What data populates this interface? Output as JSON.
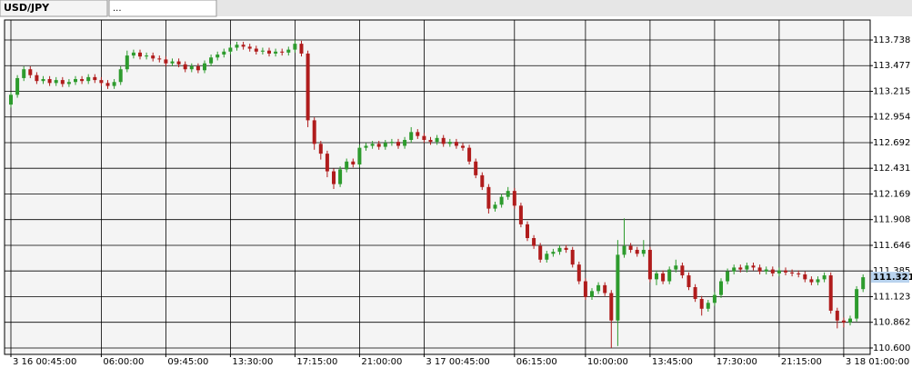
{
  "tabs": [
    "USD/JPY",
    "..."
  ],
  "chart_data": {
    "type": "candlestick",
    "categories": [
      "3 16 00:45:00",
      null,
      null,
      null,
      null,
      null,
      null,
      null,
      null,
      null,
      null,
      null,
      null,
      null,
      "06:00:00",
      null,
      null,
      null,
      null,
      null,
      null,
      null,
      null,
      null,
      "09:45:00",
      null,
      null,
      null,
      null,
      null,
      null,
      null,
      null,
      null,
      "13:30:00",
      null,
      null,
      null,
      null,
      null,
      null,
      null,
      null,
      null,
      "17:15:00",
      null,
      null,
      null,
      null,
      null,
      null,
      null,
      null,
      null,
      "21:00:00",
      null,
      null,
      null,
      null,
      null,
      null,
      null,
      null,
      null,
      "3 17 00:45:00",
      null,
      null,
      null,
      null,
      null,
      null,
      null,
      null,
      null,
      null,
      null,
      null,
      null,
      "06:15:00",
      null,
      null,
      null,
      null,
      null,
      null,
      null,
      null,
      null,
      null,
      "10:00:00",
      null,
      null,
      null,
      null,
      null,
      null,
      null,
      null,
      null,
      "13:45:00",
      null,
      null,
      null,
      null,
      null,
      null,
      null,
      null,
      null,
      "17:30:00",
      null,
      null,
      null,
      null,
      null,
      null,
      null,
      null,
      null,
      "21:15:00",
      null,
      null,
      null,
      null,
      null,
      null,
      null,
      null,
      null,
      "3 18 01:00:00",
      null,
      null,
      null
    ],
    "open": [
      113.08,
      113.18,
      113.35,
      113.44,
      113.38,
      113.32,
      113.34,
      113.3,
      113.33,
      113.29,
      113.31,
      113.34,
      113.32,
      113.36,
      113.33,
      113.3,
      113.27,
      113.31,
      113.44,
      113.58,
      113.61,
      113.57,
      113.58,
      113.55,
      113.54,
      113.5,
      113.52,
      113.49,
      113.44,
      113.47,
      113.43,
      113.5,
      113.56,
      113.59,
      113.62,
      113.66,
      113.69,
      113.67,
      113.65,
      113.62,
      113.63,
      113.6,
      113.62,
      113.61,
      113.64,
      113.7,
      113.6,
      112.92,
      112.68,
      112.58,
      112.4,
      112.27,
      112.42,
      112.5,
      112.47,
      112.64,
      112.66,
      112.68,
      112.65,
      112.69,
      112.7,
      112.66,
      112.72,
      112.8,
      112.76,
      112.72,
      112.7,
      112.74,
      112.68,
      112.7,
      112.66,
      112.64,
      112.5,
      112.36,
      112.24,
      112.02,
      112.06,
      112.14,
      112.2,
      112.05,
      111.86,
      111.72,
      111.64,
      111.5,
      111.56,
      111.58,
      111.62,
      111.6,
      111.45,
      111.28,
      111.12,
      111.18,
      111.24,
      111.16,
      110.88,
      111.55,
      111.64,
      111.6,
      111.56,
      111.6,
      111.3,
      111.36,
      111.28,
      111.4,
      111.44,
      111.34,
      111.22,
      111.1,
      111.0,
      111.06,
      111.14,
      111.28,
      111.38,
      111.42,
      111.4,
      111.44,
      111.42,
      111.38,
      111.4,
      111.36,
      111.39,
      111.37,
      111.36,
      111.35,
      111.3,
      111.27,
      111.3,
      111.34,
      110.98,
      110.88,
      110.86,
      110.9,
      111.2
    ],
    "high": [
      113.21,
      113.38,
      113.47,
      113.47,
      113.41,
      113.37,
      113.37,
      113.36,
      113.36,
      113.34,
      113.37,
      113.37,
      113.39,
      113.39,
      113.36,
      113.33,
      113.34,
      113.47,
      113.63,
      113.64,
      113.64,
      113.61,
      113.61,
      113.58,
      113.57,
      113.55,
      113.55,
      113.52,
      113.5,
      113.5,
      113.53,
      113.59,
      113.62,
      113.65,
      113.69,
      113.72,
      113.72,
      113.7,
      113.68,
      113.66,
      113.66,
      113.65,
      113.65,
      113.67,
      113.74,
      113.73,
      113.63,
      112.95,
      112.71,
      112.61,
      112.43,
      112.45,
      112.53,
      112.53,
      112.67,
      112.69,
      112.71,
      112.71,
      112.72,
      112.73,
      112.73,
      112.75,
      112.85,
      112.83,
      112.79,
      112.75,
      112.77,
      112.77,
      112.73,
      112.73,
      112.69,
      112.67,
      112.53,
      112.39,
      112.27,
      112.09,
      112.17,
      112.24,
      112.23,
      112.08,
      111.89,
      111.75,
      111.67,
      111.59,
      111.61,
      111.65,
      111.65,
      111.63,
      111.48,
      111.31,
      111.21,
      111.27,
      111.27,
      111.19,
      111.7,
      111.92,
      111.67,
      111.63,
      111.7,
      111.63,
      111.39,
      111.39,
      111.43,
      111.5,
      111.47,
      111.37,
      111.25,
      111.13,
      111.09,
      111.17,
      111.31,
      111.41,
      111.45,
      111.45,
      111.47,
      111.47,
      111.45,
      111.43,
      111.43,
      111.42,
      111.42,
      111.4,
      111.39,
      111.38,
      111.33,
      111.33,
      111.37,
      111.37,
      111.01,
      110.91,
      110.93,
      111.23,
      111.35
    ],
    "low": [
      113.05,
      113.15,
      113.32,
      113.35,
      113.29,
      113.29,
      113.27,
      113.27,
      113.26,
      113.26,
      113.28,
      113.29,
      113.29,
      113.3,
      113.27,
      113.24,
      113.24,
      113.28,
      113.41,
      113.55,
      113.54,
      113.54,
      113.52,
      113.51,
      113.47,
      113.47,
      113.46,
      113.41,
      113.41,
      113.4,
      113.4,
      113.47,
      113.53,
      113.56,
      113.59,
      113.63,
      113.64,
      113.62,
      113.59,
      113.59,
      113.57,
      113.57,
      113.58,
      113.58,
      113.61,
      113.57,
      112.85,
      112.62,
      112.52,
      112.34,
      112.22,
      112.24,
      112.39,
      112.44,
      112.44,
      112.61,
      112.63,
      112.62,
      112.62,
      112.66,
      112.63,
      112.63,
      112.69,
      112.73,
      112.69,
      112.67,
      112.67,
      112.65,
      112.65,
      112.63,
      112.61,
      112.47,
      112.33,
      112.21,
      111.97,
      111.99,
      112.03,
      112.11,
      112.02,
      111.83,
      111.69,
      111.61,
      111.47,
      111.47,
      111.53,
      111.55,
      111.57,
      111.42,
      111.25,
      111.09,
      111.09,
      111.15,
      111.13,
      110.6,
      110.62,
      111.52,
      111.57,
      111.53,
      111.53,
      111.27,
      111.24,
      111.25,
      111.25,
      111.37,
      111.31,
      111.19,
      111.07,
      110.93,
      110.97,
      111.03,
      111.11,
      111.25,
      111.35,
      111.37,
      111.37,
      111.39,
      111.35,
      111.35,
      111.33,
      111.33,
      111.34,
      111.33,
      111.32,
      111.27,
      111.24,
      111.24,
      111.27,
      110.95,
      110.8,
      110.81,
      110.83,
      110.87,
      111.17
    ],
    "close": [
      113.18,
      113.35,
      113.44,
      113.38,
      113.32,
      113.34,
      113.3,
      113.33,
      113.29,
      113.31,
      113.34,
      113.32,
      113.36,
      113.33,
      113.3,
      113.27,
      113.31,
      113.44,
      113.58,
      113.61,
      113.57,
      113.58,
      113.55,
      113.54,
      113.5,
      113.52,
      113.49,
      113.44,
      113.47,
      113.43,
      113.5,
      113.56,
      113.59,
      113.62,
      113.66,
      113.69,
      113.67,
      113.65,
      113.62,
      113.63,
      113.6,
      113.62,
      113.61,
      113.64,
      113.7,
      113.6,
      112.92,
      112.68,
      112.58,
      112.4,
      112.27,
      112.42,
      112.5,
      112.47,
      112.64,
      112.66,
      112.68,
      112.65,
      112.69,
      112.7,
      112.66,
      112.72,
      112.8,
      112.76,
      112.72,
      112.7,
      112.74,
      112.68,
      112.7,
      112.66,
      112.64,
      112.5,
      112.36,
      112.24,
      112.02,
      112.06,
      112.14,
      112.2,
      112.05,
      111.86,
      111.72,
      111.64,
      111.5,
      111.56,
      111.58,
      111.62,
      111.6,
      111.45,
      111.28,
      111.12,
      111.18,
      111.24,
      111.16,
      110.88,
      111.55,
      111.64,
      111.6,
      111.56,
      111.6,
      111.3,
      111.36,
      111.28,
      111.4,
      111.44,
      111.34,
      111.22,
      111.1,
      111.0,
      111.06,
      111.14,
      111.28,
      111.38,
      111.42,
      111.4,
      111.44,
      111.42,
      111.38,
      111.4,
      111.36,
      111.39,
      111.37,
      111.36,
      111.35,
      111.3,
      111.27,
      111.3,
      111.34,
      110.98,
      110.88,
      110.86,
      110.9,
      111.2,
      111.321
    ],
    "up_color": "#2d9b2d",
    "down_color": "#b01c1c",
    "ylim": [
      110.535,
      113.942
    ],
    "yticks": [
      113.738,
      113.477,
      113.215,
      112.954,
      112.692,
      112.431,
      112.169,
      111.908,
      111.646,
      111.385,
      111.123,
      110.862,
      {
        "value": 110.6,
        "label": "110.600"
      }
    ],
    "grid": true
  }
}
